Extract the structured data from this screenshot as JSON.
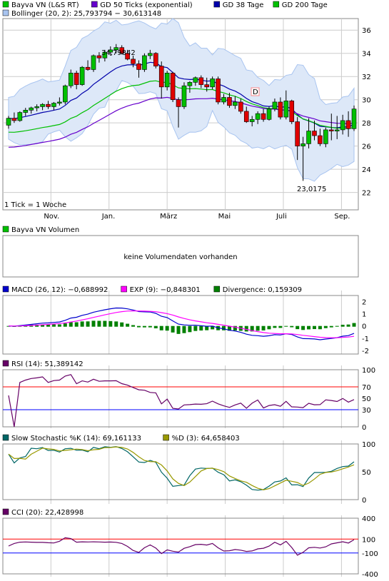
{
  "colors": {
    "bg": "#ffffff",
    "up": "#00c000",
    "down": "#e00000",
    "sma50": "#6600cc",
    "sma38": "#0000aa",
    "sma200": "#00c000",
    "boll": "#a8c4f0",
    "macd": "#0000cc",
    "exp": "#ff00ff",
    "div": "#008000",
    "rsi": "#660066",
    "stoch": "#006666",
    "stochd": "#999900",
    "cci": "#660066",
    "ref": "#ff0000",
    "ref2": "#0000ff"
  },
  "price_legend": [
    {
      "label": "Bayva VN (L&S RT)",
      "color": "#00c000"
    },
    {
      "label": "GD 50 Ticks (exponential)",
      "color": "#6600cc"
    },
    {
      "label": "GD 38 Tage",
      "color": "#0000aa"
    },
    {
      "label": "GD 200 Tage",
      "color": "#00c000"
    },
    {
      "label": "Bollinger (20, 2): 25,793794 − 30,613148",
      "color": "#a8c4f0"
    }
  ],
  "tick_note": "1 Tick = 1 Woche",
  "hi_label": "34,79842",
  "lo_label": "23,0175",
  "marker": "D",
  "volume": {
    "title": "Bayva VN Volumen",
    "message": "keine Volumendaten vorhanden"
  },
  "macd_legend": [
    {
      "label": "MACD (26, 12): −0,688992",
      "color": "#0000cc"
    },
    {
      "label": "EXP (9): −0,848301",
      "color": "#ff00ff"
    },
    {
      "label": "Divergence: 0,159309",
      "color": "#008000"
    }
  ],
  "rsi_legend": {
    "label": "RSI (14): 51,389142",
    "color": "#660066"
  },
  "stoch_legend": [
    {
      "label": "Slow Stochastic %K (14): 69,161133",
      "color": "#006666"
    },
    {
      "label": "%D (3): 64,658403",
      "color": "#999900"
    }
  ],
  "cci_legend": {
    "label": "CCI (20): 22,428998",
    "color": "#660066"
  },
  "chart_data": [
    {
      "type": "candlestick",
      "title": "Bayva VN (L&S RT)",
      "x_labels": [
        "Nov.",
        "Jan.",
        "März",
        "Mai",
        "Juli",
        "Sep."
      ],
      "y_ticks": [
        22,
        24,
        26,
        28,
        30,
        32,
        34,
        36
      ],
      "ylim": [
        20.5,
        37
      ],
      "candles": [
        [
          27.8,
          28.6,
          27.5,
          28.4
        ],
        [
          28.4,
          28.9,
          28.0,
          28.2
        ],
        [
          28.2,
          29.0,
          28.1,
          28.9
        ],
        [
          28.9,
          29.3,
          28.6,
          29.1
        ],
        [
          29.1,
          29.4,
          28.8,
          29.3
        ],
        [
          29.3,
          29.6,
          29.0,
          29.4
        ],
        [
          29.4,
          29.7,
          29.1,
          29.6
        ],
        [
          29.6,
          29.9,
          29.2,
          29.4
        ],
        [
          29.4,
          29.8,
          29.1,
          29.7
        ],
        [
          29.7,
          30.2,
          29.5,
          29.8
        ],
        [
          29.8,
          31.3,
          29.6,
          31.2
        ],
        [
          31.2,
          32.6,
          31.0,
          32.3
        ],
        [
          32.3,
          32.5,
          30.9,
          31.3
        ],
        [
          31.3,
          32.9,
          31.2,
          32.8
        ],
        [
          32.8,
          33.4,
          32.5,
          32.6
        ],
        [
          32.6,
          33.9,
          32.4,
          33.8
        ],
        [
          33.8,
          34.1,
          33.2,
          33.6
        ],
        [
          33.6,
          34.3,
          33.3,
          34.1
        ],
        [
          34.1,
          34.6,
          33.8,
          34.3
        ],
        [
          34.3,
          34.8,
          34.0,
          34.5
        ],
        [
          34.5,
          34.7,
          33.9,
          34.0
        ],
        [
          34.0,
          34.3,
          33.4,
          33.5
        ],
        [
          33.5,
          33.8,
          32.8,
          33.1
        ],
        [
          33.1,
          33.4,
          31.9,
          32.6
        ],
        [
          32.6,
          34.0,
          32.4,
          33.8
        ],
        [
          33.8,
          34.3,
          33.5,
          34.0
        ],
        [
          34.0,
          34.1,
          32.7,
          32.9
        ],
        [
          32.9,
          33.3,
          30.1,
          31.1
        ],
        [
          31.1,
          32.5,
          30.8,
          32.3
        ],
        [
          32.3,
          32.4,
          29.8,
          30.0
        ],
        [
          30.0,
          30.2,
          27.6,
          29.4
        ],
        [
          29.4,
          31.5,
          29.2,
          31.2
        ],
        [
          31.2,
          31.6,
          30.6,
          31.5
        ],
        [
          31.5,
          32.0,
          31.2,
          31.9
        ],
        [
          31.9,
          32.1,
          31.0,
          31.3
        ],
        [
          31.3,
          31.9,
          30.7,
          31.1
        ],
        [
          31.1,
          32.0,
          30.9,
          31.8
        ],
        [
          31.8,
          32.0,
          29.6,
          29.8
        ],
        [
          29.8,
          30.5,
          29.6,
          30.2
        ],
        [
          30.2,
          30.6,
          29.3,
          29.5
        ],
        [
          29.5,
          30.3,
          29.2,
          29.8
        ],
        [
          29.8,
          30.1,
          28.8,
          29.0
        ],
        [
          29.0,
          29.4,
          28.0,
          28.1
        ],
        [
          28.1,
          28.6,
          27.7,
          28.3
        ],
        [
          28.3,
          29.0,
          27.9,
          28.8
        ],
        [
          28.8,
          29.2,
          28.1,
          28.3
        ],
        [
          28.3,
          29.4,
          28.2,
          29.2
        ],
        [
          29.2,
          30.1,
          29.0,
          29.8
        ],
        [
          29.8,
          30.2,
          28.3,
          28.5
        ],
        [
          28.5,
          30.8,
          28.3,
          29.9
        ],
        [
          29.9,
          30.0,
          27.9,
          28.1
        ],
        [
          28.1,
          28.5,
          24.8,
          26.0
        ],
        [
          26.0,
          26.8,
          23.0,
          26.2
        ],
        [
          26.2,
          28.4,
          25.8,
          27.3
        ],
        [
          27.3,
          28.2,
          26.5,
          26.9
        ],
        [
          26.9,
          27.5,
          26.0,
          26.2
        ],
        [
          26.2,
          27.6,
          25.9,
          27.4
        ],
        [
          27.4,
          28.8,
          26.5,
          27.3
        ],
        [
          27.3,
          28.6,
          26.6,
          27.4
        ],
        [
          27.4,
          28.7,
          27.0,
          28.2
        ],
        [
          28.2,
          29.0,
          26.8,
          27.5
        ],
        [
          27.5,
          29.5,
          27.3,
          29.2
        ]
      ]
    },
    {
      "type": "line",
      "title": "MACD (26, 12)",
      "y_ticks": [
        -2,
        -1,
        0,
        1,
        2
      ],
      "ylim": [
        -2.3,
        2.5
      ]
    },
    {
      "type": "line",
      "title": "RSI (14)",
      "y_ticks": [
        0,
        30,
        50,
        70,
        100
      ],
      "ylim": [
        0,
        100
      ]
    },
    {
      "type": "line",
      "title": "Slow Stochastic %K (14)",
      "y_ticks": [
        0,
        50,
        100
      ],
      "ylim": [
        0,
        100
      ]
    },
    {
      "type": "area",
      "title": "CCI (20)",
      "y_ticks": [
        -400,
        -100,
        100,
        400
      ],
      "ylim": [
        -400,
        400
      ]
    }
  ]
}
